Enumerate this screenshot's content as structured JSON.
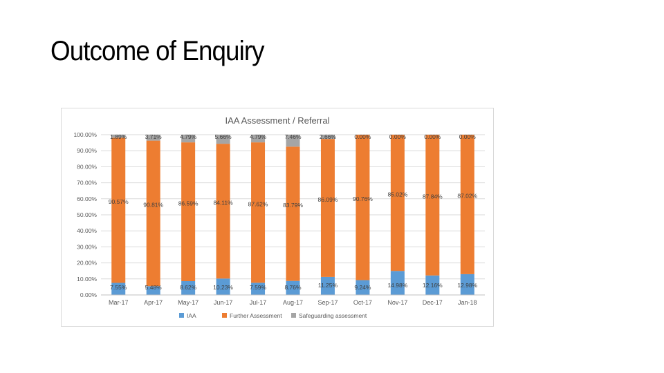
{
  "slide": {
    "title": "Outcome of Enquiry"
  },
  "chart_data": {
    "type": "bar",
    "stacked": true,
    "title": "IAA Assessment / Referral",
    "categories": [
      "Mar-17",
      "Apr-17",
      "May-17",
      "Jun-17",
      "Jul-17",
      "Aug-17",
      "Sep-17",
      "Oct-17",
      "Nov-17",
      "Dec-17",
      "Jan-18"
    ],
    "ylim": [
      0,
      100
    ],
    "yticks": [
      "0.00%",
      "10.00%",
      "20.00%",
      "30.00%",
      "40.00%",
      "50.00%",
      "60.00%",
      "70.00%",
      "80.00%",
      "90.00%",
      "100.00%"
    ],
    "grid": true,
    "legend_position": "bottom",
    "series": [
      {
        "name": "IAA",
        "color": "#5b9bd5",
        "values": [
          7.55,
          5.48,
          8.62,
          10.23,
          7.59,
          8.76,
          11.25,
          9.24,
          14.98,
          12.16,
          12.98
        ],
        "labels": [
          "7.55%",
          "5.48%",
          "8.62%",
          "10.23%",
          "7.59%",
          "8.76%",
          "11.25%",
          "9.24%",
          "14.98%",
          "12.16%",
          "12.98%"
        ]
      },
      {
        "name": "Further Assessment",
        "color": "#ed7d31",
        "values": [
          90.57,
          90.81,
          86.59,
          84.11,
          87.62,
          83.79,
          86.09,
          90.76,
          85.02,
          87.84,
          87.02
        ],
        "labels": [
          "90.57%",
          "90.81%",
          "86.59%",
          "84.11%",
          "87.62%",
          "83.79%",
          "86.09%",
          "90.76%",
          "85.02%",
          "87.84%",
          "87.02%"
        ]
      },
      {
        "name": "Safeguarding assessment",
        "color": "#a5a5a5",
        "values": [
          1.89,
          3.71,
          4.79,
          5.66,
          4.79,
          7.46,
          2.66,
          0.0,
          0.0,
          0.0,
          0.0
        ],
        "labels": [
          "1.89%",
          "3.71%",
          "4.79%",
          "5.66%",
          "4.79%",
          "7.46%",
          "2.66%",
          "0.00%",
          "0.00%",
          "0.00%",
          "0.00%"
        ]
      }
    ]
  }
}
